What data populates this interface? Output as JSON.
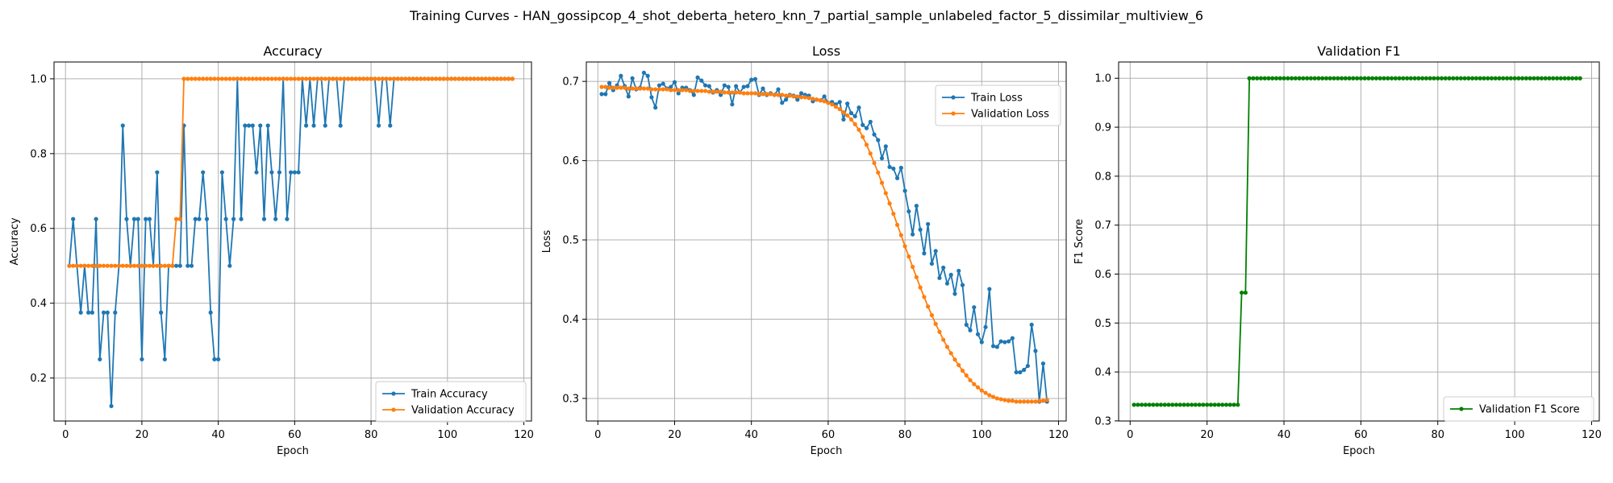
{
  "figure": {
    "suptitle": "Training Curves - HAN_gossipcop_4_shot_deberta_hetero_knn_7_partial_sample_unlabeled_factor_5_dissimilar_multiview_6"
  },
  "colors": {
    "blue": "#1f77b4",
    "orange": "#ff7f0e",
    "green": "#008000",
    "grid": "#b0b0b0"
  },
  "chart_data": [
    {
      "type": "line",
      "title": "Accuracy",
      "xlabel": "Epoch",
      "ylabel": "Accuracy",
      "xlim": [
        -3,
        122
      ],
      "ylim": [
        0.085,
        1.045
      ],
      "xticks": [
        0,
        20,
        40,
        60,
        80,
        100,
        120
      ],
      "yticks": [
        0.2,
        0.4,
        0.6,
        0.8,
        1.0
      ],
      "grid": true,
      "legend_position": "lower-right",
      "series": [
        {
          "name": "Train Accuracy",
          "color": "#1f77b4",
          "values": [
            0.5,
            0.625,
            0.5,
            0.375,
            0.5,
            0.375,
            0.375,
            0.625,
            0.25,
            0.375,
            0.375,
            0.125,
            0.375,
            0.5,
            0.875,
            0.625,
            0.5,
            0.625,
            0.625,
            0.25,
            0.625,
            0.625,
            0.5,
            0.75,
            0.375,
            0.25,
            0.5,
            0.5,
            0.5,
            0.5,
            0.875,
            0.5,
            0.5,
            0.625,
            0.625,
            0.75,
            0.625,
            0.375,
            0.25,
            0.25,
            0.75,
            0.625,
            0.5,
            0.625,
            1.0,
            0.625,
            0.875,
            0.875,
            0.875,
            0.75,
            0.875,
            0.625,
            0.875,
            0.75,
            0.625,
            0.75,
            1.0,
            0.625,
            0.75,
            0.75,
            0.75,
            1.0,
            0.875,
            1.0,
            0.875,
            1.0,
            1.0,
            0.875,
            1.0,
            1.0,
            1.0,
            0.875,
            1.0,
            1.0,
            1.0,
            1.0,
            1.0,
            1.0,
            1.0,
            1.0,
            1.0,
            0.875,
            1.0,
            1.0,
            0.875,
            1.0,
            1.0,
            1.0,
            1.0,
            1.0,
            1.0,
            1.0,
            1.0,
            1.0,
            1.0,
            1.0,
            1.0,
            1.0,
            1.0,
            1.0,
            1.0,
            1.0,
            1.0,
            1.0,
            1.0,
            1.0,
            1.0,
            1.0,
            1.0,
            1.0,
            1.0,
            1.0,
            1.0,
            1.0,
            1.0,
            1.0,
            1.0
          ]
        },
        {
          "name": "Validation Accuracy",
          "color": "#ff7f0e",
          "values": [
            0.5,
            0.5,
            0.5,
            0.5,
            0.5,
            0.5,
            0.5,
            0.5,
            0.5,
            0.5,
            0.5,
            0.5,
            0.5,
            0.5,
            0.5,
            0.5,
            0.5,
            0.5,
            0.5,
            0.5,
            0.5,
            0.5,
            0.5,
            0.5,
            0.5,
            0.5,
            0.5,
            0.5,
            0.625,
            0.625,
            1.0,
            1.0,
            1.0,
            1.0,
            1.0,
            1.0,
            1.0,
            1.0,
            1.0,
            1.0,
            1.0,
            1.0,
            1.0,
            1.0,
            1.0,
            1.0,
            1.0,
            1.0,
            1.0,
            1.0,
            1.0,
            1.0,
            1.0,
            1.0,
            1.0,
            1.0,
            1.0,
            1.0,
            1.0,
            1.0,
            1.0,
            1.0,
            1.0,
            1.0,
            1.0,
            1.0,
            1.0,
            1.0,
            1.0,
            1.0,
            1.0,
            1.0,
            1.0,
            1.0,
            1.0,
            1.0,
            1.0,
            1.0,
            1.0,
            1.0,
            1.0,
            1.0,
            1.0,
            1.0,
            1.0,
            1.0,
            1.0,
            1.0,
            1.0,
            1.0,
            1.0,
            1.0,
            1.0,
            1.0,
            1.0,
            1.0,
            1.0,
            1.0,
            1.0,
            1.0,
            1.0,
            1.0,
            1.0,
            1.0,
            1.0,
            1.0,
            1.0,
            1.0,
            1.0,
            1.0,
            1.0,
            1.0,
            1.0,
            1.0,
            1.0,
            1.0,
            1.0
          ]
        }
      ]
    },
    {
      "type": "line",
      "title": "Loss",
      "xlabel": "Epoch",
      "ylabel": "Loss",
      "xlim": [
        -3,
        122
      ],
      "ylim": [
        0.2715,
        0.7245
      ],
      "xticks": [
        0,
        20,
        40,
        60,
        80,
        100,
        120
      ],
      "yticks": [
        0.3,
        0.4,
        0.5,
        0.6,
        0.7
      ],
      "grid": true,
      "legend_position": "upper-right",
      "series": [
        {
          "name": "Train Loss",
          "color": "#1f77b4",
          "values": [
            0.684,
            0.684,
            0.698,
            0.689,
            0.695,
            0.707,
            0.694,
            0.681,
            0.704,
            0.69,
            0.692,
            0.711,
            0.707,
            0.68,
            0.667,
            0.695,
            0.697,
            0.691,
            0.693,
            0.699,
            0.685,
            0.692,
            0.692,
            0.689,
            0.683,
            0.705,
            0.701,
            0.695,
            0.694,
            0.686,
            0.689,
            0.683,
            0.695,
            0.693,
            0.671,
            0.694,
            0.686,
            0.693,
            0.694,
            0.702,
            0.703,
            0.683,
            0.691,
            0.683,
            0.685,
            0.683,
            0.69,
            0.673,
            0.677,
            0.683,
            0.682,
            0.677,
            0.685,
            0.683,
            0.682,
            0.675,
            0.677,
            0.676,
            0.681,
            0.673,
            0.674,
            0.671,
            0.674,
            0.652,
            0.672,
            0.66,
            0.656,
            0.667,
            0.645,
            0.641,
            0.649,
            0.633,
            0.626,
            0.603,
            0.618,
            0.592,
            0.59,
            0.578,
            0.591,
            0.562,
            0.536,
            0.507,
            0.543,
            0.513,
            0.483,
            0.52,
            0.47,
            0.486,
            0.452,
            0.465,
            0.445,
            0.456,
            0.432,
            0.461,
            0.443,
            0.393,
            0.386,
            0.415,
            0.381,
            0.371,
            0.39,
            0.438,
            0.366,
            0.365,
            0.372,
            0.371,
            0.372,
            0.376,
            0.333,
            0.333,
            0.336,
            0.341,
            0.393,
            0.36,
            0.296,
            0.344,
            0.296
          ]
        },
        {
          "name": "Validation Loss",
          "color": "#ff7f0e",
          "values": [
            0.693,
            0.693,
            0.692,
            0.692,
            0.692,
            0.692,
            0.692,
            0.691,
            0.691,
            0.691,
            0.691,
            0.691,
            0.691,
            0.69,
            0.69,
            0.69,
            0.69,
            0.69,
            0.689,
            0.689,
            0.689,
            0.689,
            0.689,
            0.688,
            0.688,
            0.688,
            0.688,
            0.688,
            0.687,
            0.687,
            0.687,
            0.687,
            0.686,
            0.686,
            0.686,
            0.686,
            0.686,
            0.685,
            0.685,
            0.685,
            0.685,
            0.684,
            0.684,
            0.684,
            0.684,
            0.683,
            0.683,
            0.683,
            0.682,
            0.682,
            0.681,
            0.681,
            0.68,
            0.68,
            0.679,
            0.678,
            0.677,
            0.676,
            0.675,
            0.673,
            0.671,
            0.668,
            0.665,
            0.661,
            0.657,
            0.652,
            0.646,
            0.639,
            0.63,
            0.62,
            0.609,
            0.597,
            0.585,
            0.572,
            0.559,
            0.546,
            0.533,
            0.519,
            0.506,
            0.492,
            0.479,
            0.466,
            0.453,
            0.44,
            0.428,
            0.416,
            0.405,
            0.394,
            0.384,
            0.374,
            0.365,
            0.357,
            0.349,
            0.342,
            0.335,
            0.329,
            0.323,
            0.318,
            0.314,
            0.31,
            0.307,
            0.304,
            0.302,
            0.3,
            0.299,
            0.298,
            0.297,
            0.297,
            0.296,
            0.296,
            0.296,
            0.296,
            0.296,
            0.296,
            0.297,
            0.297,
            0.298
          ]
        }
      ]
    },
    {
      "type": "line",
      "title": "Validation F1",
      "xlabel": "Epoch",
      "ylabel": "F1 Score",
      "xlim": [
        -3,
        122
      ],
      "ylim": [
        0.2998,
        1.0333
      ],
      "xticks": [
        0,
        20,
        40,
        60,
        80,
        100,
        120
      ],
      "yticks": [
        0.3,
        0.4,
        0.5,
        0.6,
        0.7,
        0.8,
        0.9,
        1.0
      ],
      "grid": true,
      "legend_position": "lower-right",
      "series": [
        {
          "name": "Validation F1 Score",
          "color": "#008000",
          "values": [
            0.333,
            0.333,
            0.333,
            0.333,
            0.333,
            0.333,
            0.333,
            0.333,
            0.333,
            0.333,
            0.333,
            0.333,
            0.333,
            0.333,
            0.333,
            0.333,
            0.333,
            0.333,
            0.333,
            0.333,
            0.333,
            0.333,
            0.333,
            0.333,
            0.333,
            0.333,
            0.333,
            0.333,
            0.562,
            0.562,
            1.0,
            1.0,
            1.0,
            1.0,
            1.0,
            1.0,
            1.0,
            1.0,
            1.0,
            1.0,
            1.0,
            1.0,
            1.0,
            1.0,
            1.0,
            1.0,
            1.0,
            1.0,
            1.0,
            1.0,
            1.0,
            1.0,
            1.0,
            1.0,
            1.0,
            1.0,
            1.0,
            1.0,
            1.0,
            1.0,
            1.0,
            1.0,
            1.0,
            1.0,
            1.0,
            1.0,
            1.0,
            1.0,
            1.0,
            1.0,
            1.0,
            1.0,
            1.0,
            1.0,
            1.0,
            1.0,
            1.0,
            1.0,
            1.0,
            1.0,
            1.0,
            1.0,
            1.0,
            1.0,
            1.0,
            1.0,
            1.0,
            1.0,
            1.0,
            1.0,
            1.0,
            1.0,
            1.0,
            1.0,
            1.0,
            1.0,
            1.0,
            1.0,
            1.0,
            1.0,
            1.0,
            1.0,
            1.0,
            1.0,
            1.0,
            1.0,
            1.0,
            1.0,
            1.0,
            1.0,
            1.0,
            1.0,
            1.0,
            1.0,
            1.0,
            1.0,
            1.0
          ]
        }
      ]
    }
  ]
}
